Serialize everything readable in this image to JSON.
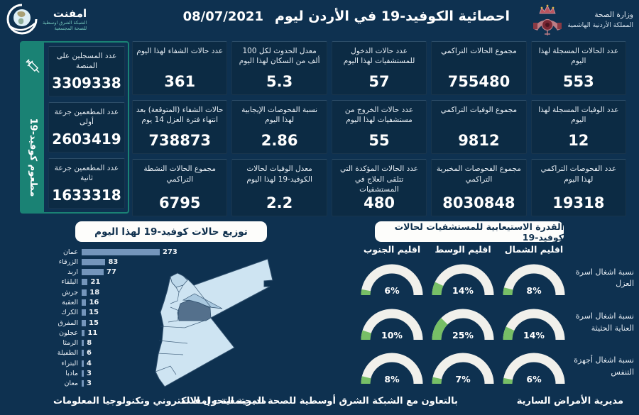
{
  "header": {
    "title": "احصائية الكوفيد-19 في الأردن ليوم",
    "date": "08/07/2021",
    "emphnet_logo": {
      "name": "امفنت",
      "line1": "الشبكة الشرق اوسطية",
      "line2": "للصحة المجتمعية"
    },
    "ministry": {
      "line1": "وزارة الصحة",
      "line2": "المملكة الأردنية الهاشمية"
    }
  },
  "vaccination": {
    "vertical_label": "مطعوم كوفيد-19",
    "cards": [
      {
        "label": "عدد المسجلين على المنصة",
        "value": "3309338"
      },
      {
        "label": "عدد المطعمين جرعة أولى",
        "value": "2603419"
      },
      {
        "label": "عدد المطعمين جرعة ثانية",
        "value": "1633318"
      }
    ]
  },
  "stats_columns": [
    {
      "cards": [
        {
          "label": "عدد الحالات المسجلة لهذا اليوم",
          "value": "553"
        },
        {
          "label": "عدد الوفيات المسجلة لهذا اليوم",
          "value": "12"
        },
        {
          "label": "عدد الفحوصات التراكمي لهذا اليوم",
          "value": "19318"
        }
      ]
    },
    {
      "cards": [
        {
          "label": "مجموع الحالات التراكمي",
          "value": "755480"
        },
        {
          "label": "مجموع الوفيات التراكمي",
          "value": "9812"
        },
        {
          "label": "مجموع الفحوصات المخبرية التراكمي",
          "value": "8030848"
        }
      ]
    },
    {
      "cards": [
        {
          "label": "عدد حالات الدخول للمستشفيات لهذا اليوم",
          "value": "57"
        },
        {
          "label": "عدد حالات الخروج من مستشفيات لهذا اليوم",
          "value": "55"
        },
        {
          "label": "عدد الحالات المؤكدة التي تتلقى العلاج في المستشفيات",
          "value": "480"
        }
      ]
    },
    {
      "cards": [
        {
          "label": "معدل الحدوث لكل 100 ألف من السكان لهذا اليوم",
          "value": "5.3"
        },
        {
          "label": "نسبة الفحوصات الإيجابية لهذا اليوم",
          "value": "2.86"
        },
        {
          "label": "معدل الوفيات لحالات الكوفيد-19 لهذا اليوم",
          "value": "2.2"
        }
      ]
    },
    {
      "cards": [
        {
          "label": "عدد حالات الشفاء لهذا اليوم",
          "value": "361"
        },
        {
          "label": "حالات الشفاء (المتوقعة) بعد انتهاء فترة العزل 14 يوم",
          "value": "738873"
        },
        {
          "label": "مجموع الحالات النشطة التراكمي",
          "value": "6795"
        }
      ]
    }
  ],
  "section_titles": {
    "distribution": "توزيع حالات كوفيد-19 لهذا اليوم",
    "capacity": "القدرة الاستيعابية للمستشفيات لحالات كوفيد-19"
  },
  "chart_data": [
    {
      "type": "bar",
      "title": "توزيع حالات كوفيد-19 لهذا اليوم",
      "orientation": "horizontal",
      "categories": [
        "عمان",
        "الزرقاء",
        "اربد",
        "البلقاء",
        "جرش",
        "العقبة",
        "الكرك",
        "المفرق",
        "عجلون",
        "الرمثا",
        "الطفيلة",
        "البتراء",
        "مادبا",
        "معان"
      ],
      "values": [
        273,
        83,
        77,
        21,
        18,
        16,
        15,
        15,
        11,
        8,
        6,
        4,
        3,
        3
      ],
      "xlim": [
        0,
        273
      ],
      "bar_color": "#7495BB"
    },
    {
      "type": "gauge",
      "title": "القدرة الاستيعابية للمستشفيات لحالات كوفيد-19",
      "columns": [
        "اقليم الشمال",
        "اقليم الوسط",
        "اقليم الجنوب"
      ],
      "rows": [
        {
          "label": "نسبة اشغال اسرة العزل",
          "values": [
            8,
            14,
            6
          ]
        },
        {
          "label": "نسبة اشغال اسرة العناية الحثيثة",
          "values": [
            14,
            25,
            10
          ]
        },
        {
          "label": "نسبة اشغال أجهزة التنفس",
          "values": [
            6,
            7,
            8
          ]
        }
      ],
      "unit": "%",
      "range": [
        0,
        100
      ],
      "track_color": "#F1F0EB",
      "fill_color": "#77BF66"
    }
  ],
  "footer": {
    "right": "مديرية الأمراض السارية",
    "center": "بالتعاون مع الشبكة الشرق أوسطية للصحة المجتمعية - إمفنت",
    "left": "مديرية التحول الالكتروني وتكنولوجيا المعلومات"
  },
  "colors": {
    "background": "#0E3150",
    "card": "#0C2B44",
    "accent_teal": "#1A8274",
    "bar": "#7495BB",
    "gauge_track": "#F1F0EB",
    "gauge_fill": "#77BF66",
    "map_light": "#CEE4F2",
    "map_medium": "#A9C8DF",
    "map_dark": "#54708C"
  }
}
